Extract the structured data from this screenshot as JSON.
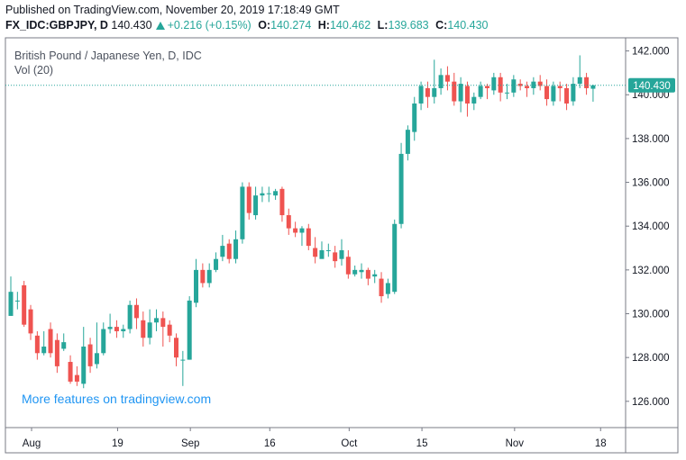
{
  "header": {
    "published": "Published on TradingView.com, November 20, 2019 17:18:49 GMT",
    "symbol": "FX_IDC:GBPJPY, D",
    "last": "140.430",
    "change": "+0.216 (+0.15%)",
    "open_label": "O:",
    "open": "140.274",
    "high_label": "H:",
    "high": "140.462",
    "low_label": "L:",
    "low": "139.683",
    "close_label": "C:",
    "close": "140.430"
  },
  "legend": {
    "title": "British Pound / Japanese Yen, D, IDC",
    "vol": "Vol (20)"
  },
  "watermark": "More features on tradingview.com",
  "price_tag": "140.430",
  "colors": {
    "up": "#26a69a",
    "down": "#ef5350",
    "price_line": "#26a69a",
    "watermark": "#2196f3",
    "axis_text": "#131722",
    "grid": "#ffffff"
  },
  "chart_data": {
    "type": "candlestick",
    "y_ticks": [
      "126.000",
      "128.000",
      "130.000",
      "132.000",
      "134.000",
      "136.000",
      "138.000",
      "140.000",
      "142.000"
    ],
    "x_ticks": [
      "Aug",
      "19",
      "Sep",
      "16",
      "Oct",
      "15",
      "Nov",
      "18"
    ],
    "ylim": [
      124.8,
      142.6
    ],
    "last_price": 140.43,
    "ohlc": [
      [
        129.9,
        131.0,
        131.7,
        130.8
      ],
      [
        130.6,
        130.6,
        131.0,
        130.2
      ],
      [
        131.3,
        129.5,
        131.5,
        129.4
      ],
      [
        130.2,
        129.1,
        130.4,
        128.8
      ],
      [
        129.0,
        128.2,
        129.2,
        127.9
      ],
      [
        128.2,
        128.5,
        129.2,
        128.1
      ],
      [
        129.3,
        128.2,
        129.6,
        128.0
      ],
      [
        128.8,
        127.6,
        129.1,
        127.3
      ],
      [
        128.4,
        128.7,
        129.1,
        128.3
      ],
      [
        127.8,
        126.9,
        128.1,
        126.8
      ],
      [
        127.2,
        126.9,
        127.6,
        126.7
      ],
      [
        126.8,
        128.5,
        129.4,
        126.6
      ],
      [
        128.6,
        127.6,
        128.9,
        127.3
      ],
      [
        127.7,
        128.2,
        129.6,
        127.5
      ],
      [
        128.2,
        129.3,
        129.6,
        128.1
      ],
      [
        129.3,
        129.4,
        130.0,
        129.1
      ],
      [
        129.4,
        129.2,
        129.7,
        128.9
      ],
      [
        129.2,
        129.3,
        129.5,
        128.9
      ],
      [
        129.3,
        130.4,
        130.6,
        129.1
      ],
      [
        130.4,
        129.8,
        130.7,
        129.3
      ],
      [
        129.7,
        128.9,
        130.1,
        128.5
      ],
      [
        128.9,
        129.6,
        130.2,
        128.6
      ],
      [
        129.6,
        129.8,
        130.2,
        129.2
      ],
      [
        129.8,
        129.4,
        130.1,
        128.5
      ],
      [
        129.5,
        129.0,
        129.7,
        128.7
      ],
      [
        128.9,
        128.0,
        129.1,
        127.6
      ],
      [
        127.9,
        127.9,
        128.3,
        126.7
      ],
      [
        127.9,
        130.6,
        130.8,
        127.9
      ],
      [
        130.5,
        132.0,
        132.5,
        130.3
      ],
      [
        132.0,
        131.4,
        132.3,
        131.2
      ],
      [
        131.4,
        132.0,
        132.3,
        131.2
      ],
      [
        132.0,
        132.5,
        132.8,
        131.9
      ],
      [
        132.6,
        133.1,
        133.6,
        132.4
      ],
      [
        133.2,
        132.5,
        133.4,
        132.3
      ],
      [
        132.5,
        133.4,
        133.8,
        132.3
      ],
      [
        133.4,
        135.8,
        136.0,
        133.2
      ],
      [
        135.8,
        134.6,
        136.0,
        134.3
      ],
      [
        134.5,
        135.4,
        135.8,
        134.3
      ],
      [
        135.4,
        135.5,
        135.8,
        135.1
      ],
      [
        135.5,
        135.5,
        135.8,
        135.1
      ],
      [
        135.4,
        135.6,
        135.7,
        135.2
      ],
      [
        135.7,
        134.5,
        135.8,
        134.2
      ],
      [
        134.5,
        133.9,
        134.8,
        133.6
      ],
      [
        133.9,
        133.7,
        134.2,
        133.5
      ],
      [
        133.7,
        133.9,
        134.0,
        133.1
      ],
      [
        133.9,
        133.1,
        134.1,
        132.9
      ],
      [
        133.0,
        132.6,
        133.5,
        132.3
      ],
      [
        132.5,
        132.9,
        133.3,
        132.6
      ],
      [
        132.9,
        132.9,
        133.2,
        132.6
      ],
      [
        132.8,
        132.4,
        133.1,
        132.1
      ],
      [
        132.5,
        132.9,
        133.4,
        132.2
      ],
      [
        132.6,
        131.8,
        132.9,
        131.6
      ],
      [
        131.8,
        132.0,
        132.2,
        131.7
      ],
      [
        131.9,
        132.0,
        132.3,
        131.6
      ],
      [
        132.0,
        131.6,
        132.1,
        131.3
      ],
      [
        131.7,
        131.8,
        132.0,
        131.4
      ],
      [
        131.6,
        130.8,
        131.9,
        130.5
      ],
      [
        130.9,
        131.4,
        131.6,
        130.7
      ],
      [
        131.0,
        134.1,
        134.3,
        130.9
      ],
      [
        134.1,
        137.3,
        137.8,
        133.9
      ],
      [
        137.3,
        138.4,
        138.6,
        137.0
      ],
      [
        138.3,
        139.6,
        139.9,
        137.9
      ],
      [
        139.6,
        140.4,
        140.6,
        139.3
      ],
      [
        140.3,
        139.9,
        140.6,
        139.4
      ],
      [
        139.9,
        140.3,
        141.6,
        139.6
      ],
      [
        140.3,
        140.9,
        141.2,
        140.0
      ],
      [
        140.9,
        140.6,
        141.3,
        140.2
      ],
      [
        140.6,
        139.7,
        141.0,
        139.5
      ],
      [
        139.7,
        140.5,
        140.8,
        139.2
      ],
      [
        140.4,
        139.6,
        140.6,
        139.0
      ],
      [
        139.6,
        139.9,
        140.1,
        139.3
      ],
      [
        139.9,
        140.4,
        140.6,
        139.8
      ],
      [
        140.4,
        140.3,
        140.5,
        139.8
      ],
      [
        140.2,
        140.8,
        141.0,
        140.0
      ],
      [
        140.8,
        140.1,
        141.0,
        139.7
      ],
      [
        140.1,
        140.1,
        140.5,
        139.8
      ],
      [
        140.1,
        140.7,
        140.9,
        139.9
      ],
      [
        140.5,
        140.4,
        140.7,
        140.2
      ],
      [
        140.4,
        140.3,
        140.6,
        139.9
      ],
      [
        140.3,
        140.6,
        140.8,
        140.0
      ],
      [
        140.6,
        140.4,
        140.9,
        140.2
      ],
      [
        140.4,
        139.8,
        140.7,
        139.5
      ],
      [
        139.7,
        140.4,
        140.6,
        139.5
      ],
      [
        140.4,
        140.3,
        140.6,
        139.7
      ],
      [
        140.3,
        139.6,
        140.5,
        139.3
      ],
      [
        139.7,
        140.5,
        140.8,
        139.5
      ],
      [
        140.5,
        140.8,
        141.8,
        140.3
      ],
      [
        140.8,
        140.3,
        141.0,
        140.0
      ],
      [
        140.274,
        140.43,
        140.462,
        139.683
      ]
    ]
  }
}
